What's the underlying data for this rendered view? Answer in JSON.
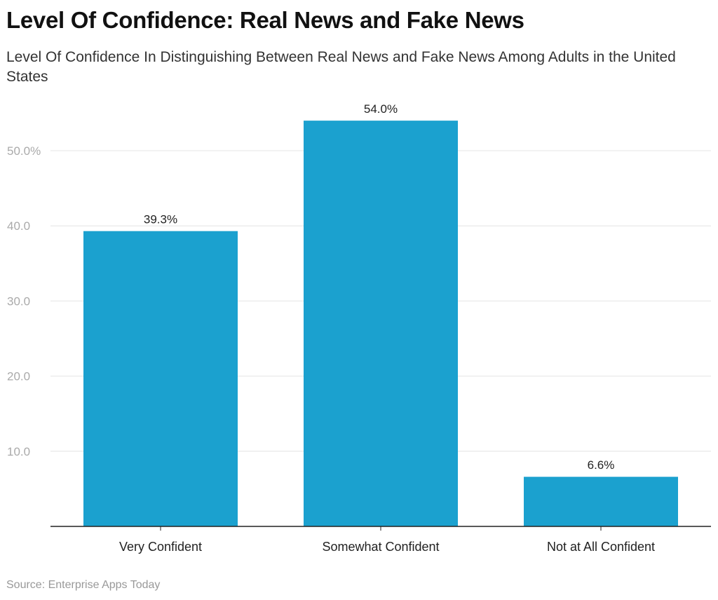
{
  "chart_data": {
    "type": "bar",
    "title": "Level Of Confidence: Real News and Fake News",
    "subtitle": "Level Of Confidence In Distinguishing Between Real News and Fake News Among Adults in the United States",
    "categories": [
      "Very Confident",
      "Somewhat Confident",
      "Not at All Confident"
    ],
    "values": [
      39.3,
      54.0,
      6.6
    ],
    "data_labels": [
      "39.3%",
      "54.0%",
      "6.6%"
    ],
    "yticks": [
      10,
      20,
      30,
      40,
      50
    ],
    "ytick_labels": [
      "10.0",
      "20.0",
      "30.0",
      "40.0",
      "50.0%"
    ],
    "ylim": [
      0,
      50
    ],
    "grid": true,
    "bar_color": "#1ba1cf",
    "xlabel": "",
    "ylabel": "",
    "source": "Source: Enterprise Apps Today"
  }
}
